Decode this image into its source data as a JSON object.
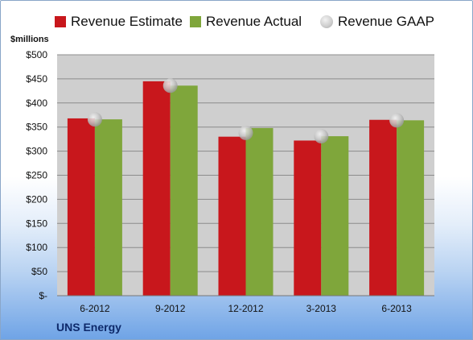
{
  "colors": {
    "estimate": "#c8171c",
    "actual": "#7fa63b",
    "gaap": "#bdbdbd",
    "plot_bg": "#cfcfcf",
    "grid": "#8c8c8c"
  },
  "chart_data": {
    "type": "bar",
    "title": "",
    "ylabel": "$millions",
    "company_label": "UNS Energy",
    "categories": [
      "6-2012",
      "9-2012",
      "12-2012",
      "3-2013",
      "6-2013"
    ],
    "ylim": [
      0,
      500
    ],
    "ytick_step": 50,
    "yticks": [
      "$-",
      "$50",
      "$100",
      "$150",
      "$200",
      "$250",
      "$300",
      "$350",
      "$400",
      "$450",
      "$500"
    ],
    "grid": true,
    "legend_position": "top",
    "series": [
      {
        "name": "Revenue Estimate",
        "type": "bar",
        "values": [
          368,
          445,
          330,
          322,
          365
        ]
      },
      {
        "name": "Revenue Actual",
        "type": "bar",
        "values": [
          366,
          436,
          348,
          331,
          364
        ]
      },
      {
        "name": "Revenue GAAP",
        "type": "scatter",
        "values": [
          366,
          436,
          338,
          331,
          364
        ]
      }
    ]
  }
}
